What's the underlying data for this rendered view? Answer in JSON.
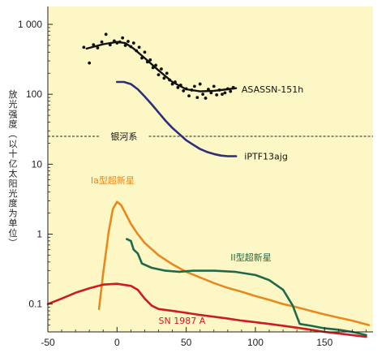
{
  "chart_data": {
    "type": "line",
    "title": "",
    "xlabel": "",
    "ylabel": "放光强度（以十亿太阳光度为单位）",
    "xscale": "linear",
    "yscale": "log",
    "xlim": [
      -50,
      185
    ],
    "ylim": [
      0.04,
      1800
    ],
    "xticks": [
      -50,
      0,
      50,
      100,
      150
    ],
    "xtick_labels": [
      "-50",
      "0",
      "50",
      "100",
      "150"
    ],
    "yticks": [
      0.1,
      1,
      10,
      100,
      1000
    ],
    "ytick_labels": [
      "0.1",
      "1",
      "10",
      "100",
      "1 000"
    ],
    "background_color": "#fdf7c5",
    "grid": false,
    "reference_line": {
      "label": "银河系",
      "y": 25,
      "style": "dashed"
    },
    "series": [
      {
        "name": "ASASSN-151h",
        "color": "#111111",
        "x": [
          -22,
          -10,
          0,
          6,
          12,
          20,
          30,
          40,
          50,
          60,
          70,
          80,
          86
        ],
        "y": [
          450,
          520,
          560,
          540,
          450,
          330,
          220,
          150,
          118,
          110,
          112,
          118,
          122
        ]
      },
      {
        "name": "ASASSN-151h observations",
        "style": "points",
        "color": "#111111",
        "x": [
          -24,
          -20,
          -17,
          -14,
          -11,
          -8,
          -5,
          -2,
          0,
          2,
          4,
          6,
          8,
          10,
          12,
          14,
          16,
          18,
          20,
          22,
          24,
          26,
          28,
          30,
          32,
          34,
          36,
          38,
          40,
          42,
          44,
          46,
          48,
          50,
          52,
          54,
          56,
          58,
          60,
          62,
          64,
          66,
          68,
          70,
          72,
          74,
          76,
          78,
          80,
          82,
          84
        ],
        "y": [
          470,
          280,
          510,
          460,
          560,
          720,
          510,
          580,
          540,
          560,
          640,
          500,
          570,
          480,
          540,
          420,
          470,
          330,
          400,
          290,
          310,
          240,
          260,
          190,
          230,
          170,
          200,
          160,
          140,
          150,
          125,
          135,
          112,
          120,
          95,
          115,
          130,
          90,
          140,
          100,
          88,
          118,
          105,
          130,
          98,
          115,
          100,
          105,
          120,
          110,
          125
        ]
      },
      {
        "name": "iPTF13ajg",
        "color": "#2d2d7a",
        "x": [
          0,
          5,
          10,
          15,
          20,
          25,
          30,
          35,
          40,
          45,
          50,
          55,
          60,
          65,
          70,
          75,
          80,
          86
        ],
        "y": [
          150,
          150,
          140,
          118,
          93,
          72,
          55,
          42,
          33,
          27,
          22,
          19,
          16.5,
          15,
          14,
          13.3,
          13,
          13
        ]
      },
      {
        "name": "Ia型超新星",
        "color": "#e8891f",
        "x": [
          -13,
          -10,
          -6,
          -3,
          0,
          3,
          6,
          10,
          15,
          20,
          30,
          40,
          50,
          60,
          70,
          80,
          90,
          100,
          110,
          120,
          130,
          140,
          150,
          160,
          170,
          182
        ],
        "y": [
          0.085,
          0.28,
          1.1,
          2.3,
          2.9,
          2.6,
          2.0,
          1.4,
          1.0,
          0.75,
          0.5,
          0.37,
          0.29,
          0.24,
          0.2,
          0.17,
          0.15,
          0.13,
          0.115,
          0.1,
          0.09,
          0.08,
          0.071,
          0.064,
          0.058,
          0.05
        ]
      },
      {
        "name": "II型超新星",
        "color": "#1d6a4a",
        "x": [
          7,
          10,
          12,
          15,
          18,
          25,
          35,
          45,
          55,
          70,
          85,
          100,
          110,
          120,
          127,
          132,
          140,
          150,
          160,
          170,
          180
        ],
        "y": [
          0.85,
          0.8,
          0.6,
          0.53,
          0.38,
          0.33,
          0.3,
          0.29,
          0.3,
          0.3,
          0.29,
          0.26,
          0.22,
          0.16,
          0.095,
          0.052,
          0.049,
          0.045,
          0.043,
          0.04,
          0.036
        ]
      },
      {
        "name": "SN 1987 A",
        "color": "#cc1c22",
        "x": [
          -50,
          -40,
          -30,
          -20,
          -10,
          0,
          10,
          15,
          20,
          25,
          30,
          40,
          50,
          60,
          70,
          80,
          90,
          100,
          110,
          120,
          130,
          140,
          150,
          160,
          170,
          180
        ],
        "y": [
          0.1,
          0.12,
          0.145,
          0.168,
          0.19,
          0.195,
          0.182,
          0.16,
          0.12,
          0.095,
          0.085,
          0.08,
          0.075,
          0.07,
          0.066,
          0.062,
          0.058,
          0.055,
          0.052,
          0.049,
          0.046,
          0.043,
          0.04,
          0.038,
          0.036,
          0.034
        ]
      }
    ],
    "annotations": [
      {
        "text": "ASASSN-151h",
        "series": "ASASSN-151h",
        "color": "#111111",
        "anchor": "right-end"
      },
      {
        "text": "iPTF13ajg",
        "series": "iPTF13ajg",
        "color": "#111111",
        "anchor": "right-end"
      },
      {
        "text": "Ia型超新星",
        "series": "Ia型超新星",
        "color": "#e8891f",
        "anchor": "above-peak"
      },
      {
        "text": "II型超新星",
        "series": "II型超新星",
        "color": "#1d6a4a",
        "anchor": "above-plateau"
      },
      {
        "text": "SN 1987 A",
        "series": "SN 1987 A",
        "color": "#cc1c22",
        "anchor": "below-middle"
      },
      {
        "text": "银河系",
        "series": "reference_line",
        "color": "#111111",
        "anchor": "on-line"
      }
    ]
  }
}
